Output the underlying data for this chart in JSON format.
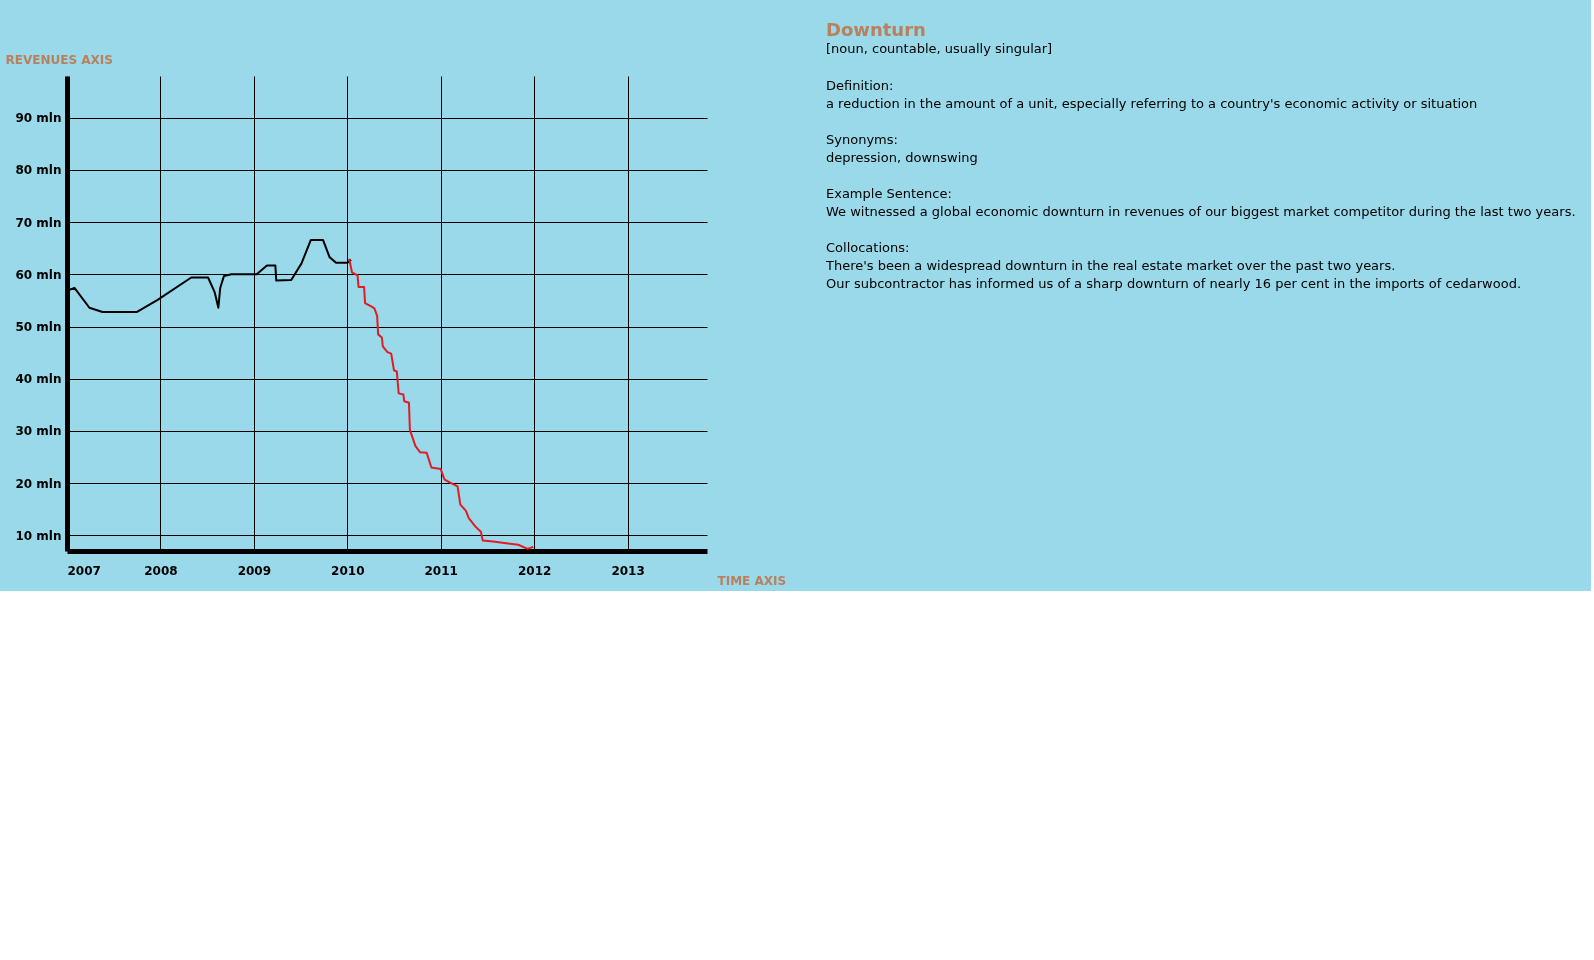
{
  "chart_data": [
    {
      "type": "line",
      "xlabel": "TIME AXIS",
      "ylabel": "REVENUES AXIS",
      "xlim": [
        2007,
        2013.85
      ],
      "ylim": [
        7,
        98
      ],
      "xticks": [
        2007,
        2008,
        2009,
        2010,
        2011,
        2012,
        2013
      ],
      "yticks": [
        {
          "value": 10,
          "label": "10 mln"
        },
        {
          "value": 20,
          "label": "20 mln"
        },
        {
          "value": 30,
          "label": "30 mln"
        },
        {
          "value": 40,
          "label": "40 mln"
        },
        {
          "value": 50,
          "label": "50 mln"
        },
        {
          "value": 60,
          "label": "60 mln"
        },
        {
          "value": 70,
          "label": "70 mln"
        },
        {
          "value": 80,
          "label": "80 mln"
        },
        {
          "value": 90,
          "label": "90 mln"
        }
      ],
      "grid": true,
      "legend": false,
      "marker": "none",
      "line_style": "solid",
      "series": [
        {
          "color": "#000000",
          "x": [
            2007.02,
            2007.08,
            2007.24,
            2007.38,
            2007.75,
            2007.97,
            2008.33,
            2008.51,
            2008.58,
            2008.62,
            2008.64,
            2008.68,
            2008.76,
            2009.03,
            2009.14,
            2009.23,
            2009.24,
            2009.4,
            2009.51,
            2009.61,
            2009.74,
            2009.81,
            2009.88,
            2010.0,
            2010.04
          ],
          "values": [
            57,
            57.4,
            53.6,
            52.8,
            52.8,
            55.1,
            59.4,
            59.4,
            56.6,
            53.6,
            57.4,
            59.7,
            60,
            60,
            61.7,
            61.7,
            58.8,
            58.9,
            62.1,
            66.6,
            66.6,
            63.3,
            62.2,
            62.2,
            62.8
          ]
        },
        {
          "color": "#e01c24",
          "x": [
            2010.02,
            2010.05,
            2010.11,
            2010.12,
            2010.18,
            2010.19,
            2010.26,
            2010.29,
            2010.32,
            2010.33,
            2010.37,
            2010.38,
            2010.43,
            2010.47,
            2010.5,
            2010.53,
            2010.55,
            2010.6,
            2010.61,
            2010.66,
            2010.67,
            2010.73,
            2010.78,
            2010.85,
            2010.9,
            2011.0,
            2011.04,
            2011.09,
            2011.18,
            2011.21,
            2011.27,
            2011.3,
            2011.37,
            2011.43,
            2011.45,
            2011.56,
            2011.7,
            2011.83,
            2011.93,
            2011.99
          ],
          "values": [
            63,
            60.4,
            59.8,
            57.6,
            57.6,
            54.5,
            53.8,
            53.5,
            52,
            48.5,
            47.9,
            46.2,
            45.1,
            44.8,
            41.6,
            41.4,
            37.2,
            37,
            35.7,
            35.4,
            30.2,
            27.1,
            25.9,
            25.8,
            23,
            22.7,
            20.7,
            20.2,
            19.4,
            15.9,
            14.7,
            13.3,
            11.7,
            10.7,
            9,
            8.8,
            8.5,
            8.2,
            7.4,
            7.8
          ]
        }
      ]
    },
    {
      "type": "other",
      "title": "Downturn",
      "subtitle": "[noun, countable, usually singular]",
      "annotations": [
        "Definition:",
        "a reduction in the amount of a unit, especially referring to a country's economic activity or situation",
        "Synonyms:",
        "depression, downswing",
        "Example Sentence:",
        "We witnessed a global economic downturn in revenues of our biggest market competitor during the last two years.",
        "Collocations:",
        "There's been a widespread downturn in the real estate market over the past two years.",
        "Our subcontractor has informed us of a sharp downturn of nearly 16 per cent in the imports of cedarwood."
      ]
    }
  ]
}
